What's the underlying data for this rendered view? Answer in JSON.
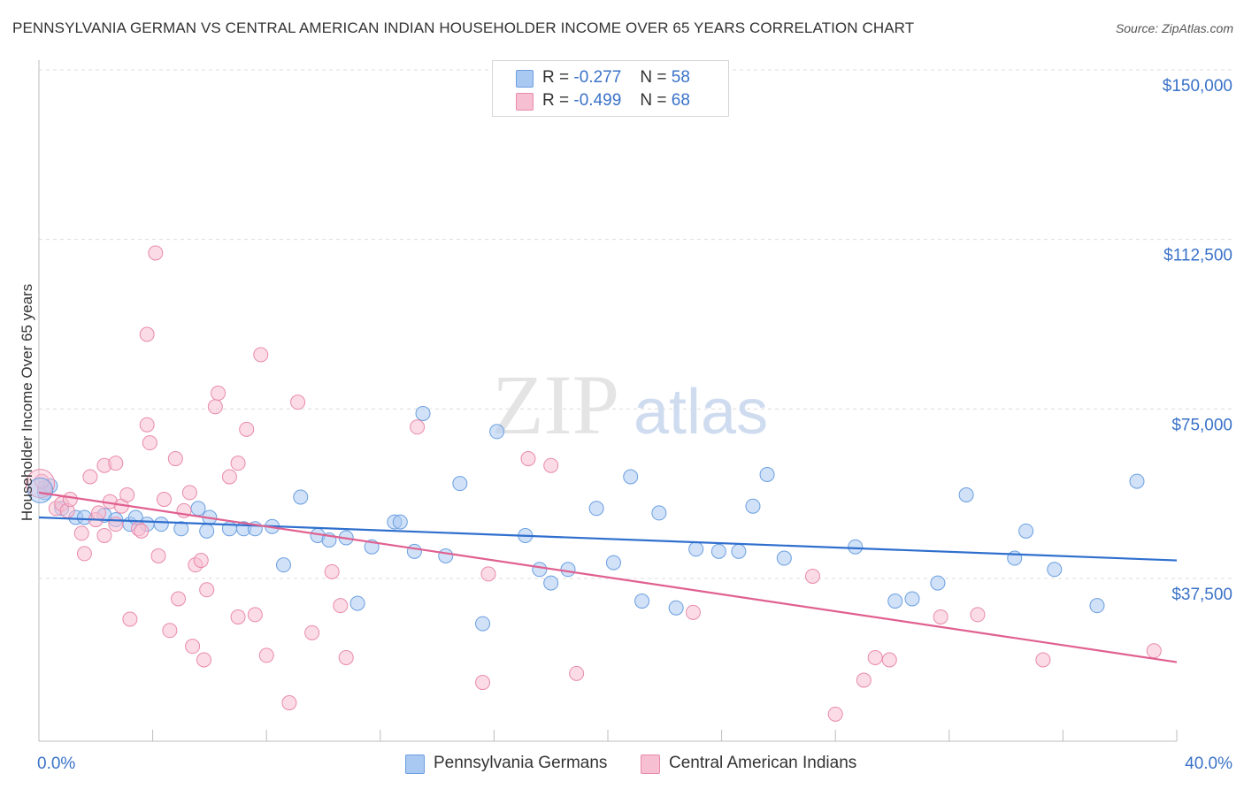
{
  "title": "PENNSYLVANIA GERMAN VS CENTRAL AMERICAN INDIAN HOUSEHOLDER INCOME OVER 65 YEARS CORRELATION CHART",
  "source": "Source: ZipAtlas.com",
  "watermark": {
    "zip": "ZIP",
    "atlas": "atlas"
  },
  "legend": {
    "rows": [
      {
        "r_label": "R =",
        "r_value": "-0.277",
        "n_label": "N =",
        "n_value": "58",
        "color": "#a9c8f2",
        "border": "#6b9fe0"
      },
      {
        "r_label": "R =",
        "r_value": "-0.499",
        "n_label": "N =",
        "n_value": "68",
        "color": "#f7bfd2",
        "border": "#e98aab"
      }
    ]
  },
  "bottom_legend": [
    "Pennsylvania Germans",
    "Central American Indians"
  ],
  "chart_data": {
    "type": "scatter",
    "title": "PENNSYLVANIA GERMAN VS CENTRAL AMERICAN INDIAN HOUSEHOLDER INCOME OVER 65 YEARS CORRELATION CHART",
    "xlabel": "",
    "ylabel": "Householder Income Over 65 years",
    "xlim": [
      0,
      40
    ],
    "ylim": [
      3000,
      153000
    ],
    "x_tick_labels": [
      "0.0%",
      "40.0%"
    ],
    "y_ticks": [
      37500,
      75000,
      112500,
      150000
    ],
    "y_tick_labels": [
      "$37,500",
      "$75,000",
      "$112,500",
      "$150,000"
    ],
    "grid": "horizontal dashed",
    "legend_position": "top-center",
    "series": [
      {
        "name": "Pennsylvania Germans",
        "color": "#6b9fe0",
        "fill": "#a9c8f2",
        "trend": {
          "x": [
            0,
            40
          ],
          "y": [
            51000,
            41500
          ],
          "color": "#2f6fce"
        },
        "points": [
          [
            0.2,
            56500
          ],
          [
            0.4,
            58000
          ],
          [
            0.8,
            53000
          ],
          [
            1.3,
            51000
          ],
          [
            1.6,
            51000
          ],
          [
            2.3,
            51500
          ],
          [
            2.7,
            50500
          ],
          [
            3.2,
            49500
          ],
          [
            3.4,
            51000
          ],
          [
            3.8,
            49500
          ],
          [
            4.3,
            49500
          ],
          [
            5.0,
            48500
          ],
          [
            5.6,
            53000
          ],
          [
            5.9,
            48000
          ],
          [
            6.0,
            51000
          ],
          [
            6.7,
            48500
          ],
          [
            7.2,
            48500
          ],
          [
            7.6,
            48500
          ],
          [
            8.2,
            49000
          ],
          [
            8.6,
            40500
          ],
          [
            9.2,
            55500
          ],
          [
            9.8,
            47000
          ],
          [
            10.2,
            46000
          ],
          [
            10.8,
            46500
          ],
          [
            11.2,
            32000
          ],
          [
            11.7,
            44500
          ],
          [
            12.5,
            50000
          ],
          [
            12.7,
            50000
          ],
          [
            13.2,
            43500
          ],
          [
            13.5,
            74000
          ],
          [
            14.3,
            42500
          ],
          [
            14.8,
            58500
          ],
          [
            15.6,
            27500
          ],
          [
            16.1,
            70000
          ],
          [
            17.1,
            47000
          ],
          [
            17.6,
            39500
          ],
          [
            18.0,
            36500
          ],
          [
            18.6,
            39500
          ],
          [
            19.6,
            53000
          ],
          [
            20.2,
            41000
          ],
          [
            20.8,
            60000
          ],
          [
            21.2,
            32500
          ],
          [
            21.8,
            52000
          ],
          [
            22.4,
            31000
          ],
          [
            23.1,
            44000
          ],
          [
            23.9,
            43500
          ],
          [
            24.6,
            43500
          ],
          [
            25.1,
            53500
          ],
          [
            25.6,
            60500
          ],
          [
            26.2,
            42000
          ],
          [
            28.7,
            44500
          ],
          [
            30.1,
            32500
          ],
          [
            30.7,
            33000
          ],
          [
            31.6,
            36500
          ],
          [
            32.6,
            56000
          ],
          [
            34.3,
            42000
          ],
          [
            34.7,
            48000
          ],
          [
            35.7,
            39500
          ],
          [
            37.2,
            31500
          ],
          [
            38.6,
            59000
          ]
        ]
      },
      {
        "name": "Central American Indians",
        "color": "#e98aab",
        "fill": "#f7bfd2",
        "trend": {
          "x": [
            0,
            40
          ],
          "y": [
            56500,
            19000
          ],
          "color": "#e0608f"
        },
        "points": [
          [
            0.2,
            57500
          ],
          [
            0.6,
            53000
          ],
          [
            0.8,
            54000
          ],
          [
            1.0,
            52500
          ],
          [
            1.1,
            55000
          ],
          [
            1.5,
            47500
          ],
          [
            1.6,
            43000
          ],
          [
            1.8,
            60000
          ],
          [
            2.0,
            50500
          ],
          [
            2.1,
            52000
          ],
          [
            2.3,
            47000
          ],
          [
            2.3,
            62500
          ],
          [
            2.5,
            54500
          ],
          [
            2.7,
            63000
          ],
          [
            2.7,
            49500
          ],
          [
            2.9,
            53500
          ],
          [
            3.1,
            56000
          ],
          [
            3.2,
            28500
          ],
          [
            3.5,
            48500
          ],
          [
            3.6,
            48000
          ],
          [
            3.8,
            91500
          ],
          [
            3.8,
            71500
          ],
          [
            3.9,
            67500
          ],
          [
            4.1,
            109500
          ],
          [
            4.2,
            42500
          ],
          [
            4.4,
            55000
          ],
          [
            4.6,
            26000
          ],
          [
            4.8,
            64000
          ],
          [
            4.9,
            33000
          ],
          [
            5.1,
            52500
          ],
          [
            5.3,
            56500
          ],
          [
            5.4,
            22500
          ],
          [
            5.5,
            40500
          ],
          [
            5.7,
            41500
          ],
          [
            5.8,
            19500
          ],
          [
            5.9,
            35000
          ],
          [
            6.2,
            75500
          ],
          [
            6.3,
            78500
          ],
          [
            6.7,
            60000
          ],
          [
            7.0,
            63000
          ],
          [
            7.0,
            29000
          ],
          [
            7.3,
            70500
          ],
          [
            7.6,
            29500
          ],
          [
            7.8,
            87000
          ],
          [
            8.0,
            20500
          ],
          [
            8.8,
            10000
          ],
          [
            9.1,
            76500
          ],
          [
            9.6,
            25500
          ],
          [
            10.3,
            39000
          ],
          [
            10.6,
            31500
          ],
          [
            10.8,
            20000
          ],
          [
            13.3,
            71000
          ],
          [
            15.6,
            14500
          ],
          [
            15.8,
            38500
          ],
          [
            17.2,
            64000
          ],
          [
            18.0,
            62500
          ],
          [
            18.9,
            16500
          ],
          [
            23.0,
            30000
          ],
          [
            27.2,
            38000
          ],
          [
            28.0,
            7500
          ],
          [
            29.0,
            15000
          ],
          [
            29.4,
            20000
          ],
          [
            29.9,
            19500
          ],
          [
            31.7,
            29000
          ],
          [
            33.0,
            29500
          ],
          [
            35.3,
            19500
          ],
          [
            39.2,
            21500
          ],
          [
            0.1,
            59000
          ]
        ]
      }
    ]
  }
}
